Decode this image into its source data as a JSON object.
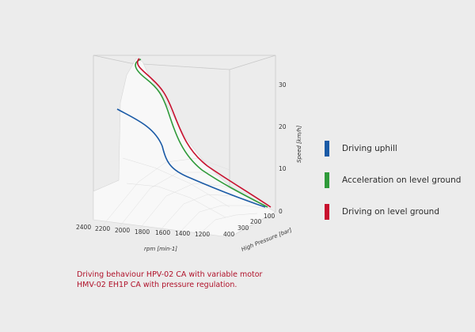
{
  "chart_data": {
    "type": "line",
    "subtype": "3d-surface",
    "x_axis": {
      "label": "rpm [min-1]",
      "ticks": [
        2400,
        2200,
        2000,
        1800,
        1600,
        1400,
        1200
      ]
    },
    "y_axis": {
      "label": "High Pressure [bar]",
      "ticks": [
        400,
        300,
        200,
        100
      ]
    },
    "z_axis": {
      "label": "Speed [km/h]",
      "ticks": [
        0,
        10,
        20,
        30
      ]
    },
    "series": [
      {
        "name": "Driving uphill",
        "color": "#1a5aa6"
      },
      {
        "name": "Acceleration on level ground",
        "color": "#2f9a3a"
      },
      {
        "name": "Driving on level ground",
        "color": "#c8102e"
      }
    ],
    "surface_color": "#f8f8f8",
    "grid": true,
    "legend_position": "right"
  },
  "caption": {
    "line1": "Driving behaviour HPV-02 CA with variable motor",
    "line2": "HMV-02 EH1P CA with pressure regulation."
  }
}
